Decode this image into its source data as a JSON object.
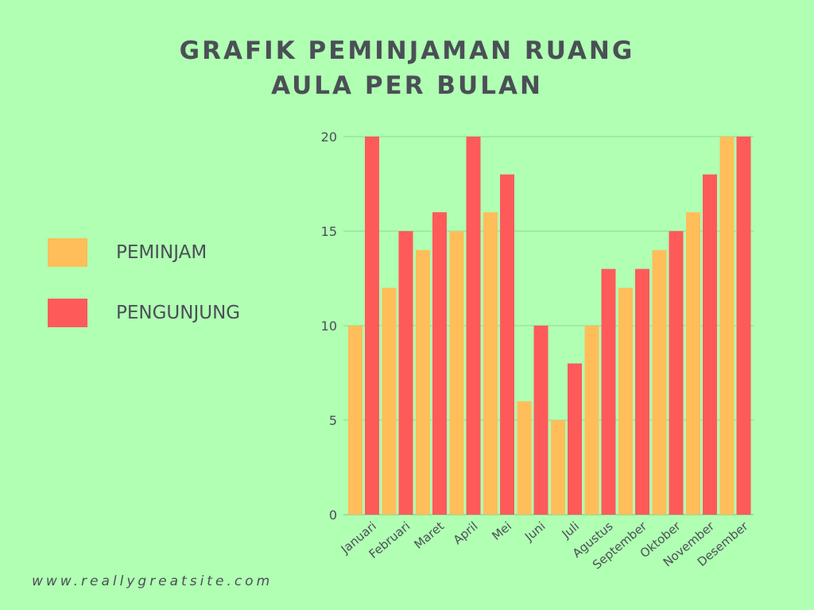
{
  "title_line1": "GRAFIK PEMINJAMAN RUANG",
  "title_line2": "AULA PER BULAN",
  "footer": "www.reallygreatsite.com",
  "colors": {
    "background": "#b0ffb3",
    "peminjam": "#ffbe5a",
    "pengunjung": "#ff5a5a",
    "text": "#4b4f56",
    "grid": "#8fd69a"
  },
  "legend": [
    {
      "label": "PEMINJAM",
      "color": "#ffbe5a"
    },
    {
      "label": "PENGUNJUNG",
      "color": "#ff5a5a"
    }
  ],
  "chart_data": {
    "type": "bar",
    "categories": [
      "Januari",
      "Februari",
      "Maret",
      "April",
      "Mei",
      "Juni",
      "Juli",
      "Agustus",
      "September",
      "Oktober",
      "November",
      "Desember"
    ],
    "series": [
      {
        "name": "PEMINJAM",
        "values": [
          10,
          12,
          14,
          15,
          16,
          6,
          5,
          10,
          12,
          14,
          16,
          20
        ]
      },
      {
        "name": "PENGUNJUNG",
        "values": [
          20,
          15,
          16,
          20,
          18,
          10,
          8,
          13,
          13,
          15,
          18,
          20
        ]
      }
    ],
    "yticks": [
      0,
      5,
      10,
      15,
      20
    ],
    "ylim": [
      0,
      20
    ],
    "grid": true,
    "legend_position": "left",
    "title": "GRAFIK PEMINJAMAN RUANG AULA PER BULAN",
    "xlabel": "",
    "ylabel": ""
  }
}
